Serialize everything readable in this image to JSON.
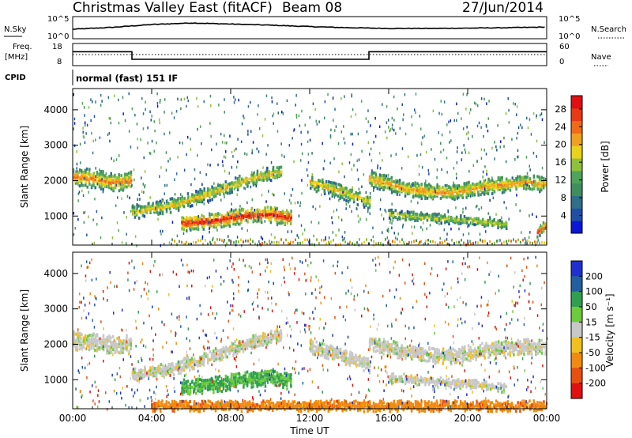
{
  "header": {
    "title": "Christmas Valley East (fitACF)",
    "beam": "Beam 08",
    "date": "27/Jun/2014"
  },
  "noise_panel": {
    "label": "N.Sky",
    "right_label": "N.Search",
    "tick_top": "10^5",
    "tick_bottom": "10^0"
  },
  "freq_panel": {
    "label_line1": "Freq.",
    "label_line2": "[MHz]",
    "ticks_left": [
      "18",
      "8"
    ],
    "ticks_right": [
      "60",
      "0"
    ],
    "right_label": "Nave"
  },
  "cpid": {
    "label": "CPID",
    "value": "normal (fast) 151 IF"
  },
  "power_panel": {
    "ylabel": "Slant Range [km]",
    "yticks": [
      "1000",
      "2000",
      "3000",
      "4000"
    ],
    "colorbar_label": "Power [dB]",
    "colorbar_ticks": [
      "4",
      "8",
      "12",
      "16",
      "20",
      "24",
      "28"
    ]
  },
  "velocity_panel": {
    "ylabel": "Slant Range [km]",
    "yticks": [
      "1000",
      "2000",
      "3000",
      "4000"
    ],
    "colorbar_label": "Velocity [m s⁻¹]",
    "colorbar_ticks": [
      "200",
      "100",
      "50",
      "15",
      "-15",
      "-50",
      "-100",
      "-200"
    ]
  },
  "x_axis": {
    "label": "Time UT",
    "ticks": [
      "00:00",
      "04:00",
      "08:00",
      "12:00",
      "16:00",
      "20:00",
      "00:00"
    ]
  },
  "colors": {
    "power_scale": [
      "#0a16d8",
      "#1e4fa5",
      "#2f6f8a",
      "#3f8f5d",
      "#4fa35a",
      "#8fc03a",
      "#e8d21c",
      "#f0a020",
      "#f06a18",
      "#e83a14",
      "#e01010"
    ],
    "velocity_scale": [
      "#2030d0",
      "#2060a0",
      "#30a050",
      "#6ccc3c",
      "#c8c8c8",
      "#f0c020",
      "#f08a10",
      "#e85010",
      "#e01010"
    ]
  },
  "chart_data": [
    {
      "type": "line",
      "title": "N.Sky / N.Search",
      "x": [
        0,
        2,
        4,
        6,
        8,
        10,
        12,
        14,
        16,
        18,
        20,
        22,
        24
      ],
      "series": [
        {
          "name": "N.Sky",
          "values": [
            150,
            500,
            3000,
            8000,
            4000,
            2000,
            800,
            400,
            250,
            250,
            300,
            400,
            600
          ]
        }
      ],
      "ylim": [
        1,
        100000
      ]
    },
    {
      "type": "line",
      "title": "Freq. [MHz]",
      "x": [
        0,
        3,
        3,
        15,
        15,
        24
      ],
      "series": [
        {
          "name": "Freq.",
          "values": [
            14.5,
            14.5,
            10.5,
            10.5,
            14.5,
            14.5
          ]
        }
      ],
      "ylim": [
        8,
        18
      ]
    },
    {
      "type": "heatmap",
      "title": "Power [dB]",
      "xlabel": "Time UT",
      "ylabel": "Slant Range [km]",
      "xlim": [
        0,
        24
      ],
      "ylim": [
        180,
        4600
      ],
      "zlim": [
        0,
        31
      ],
      "x_ticks": [
        0,
        4,
        8,
        12,
        16,
        20,
        24
      ],
      "y_ticks": [
        1000,
        2000,
        3000,
        4000
      ],
      "bands": [
        {
          "t": [
            0.0,
            1.0,
            2.0,
            3.0
          ],
          "range": [
            2150,
            2100,
            2000,
            2050
          ],
          "width": 250,
          "peak_db": 24
        },
        {
          "t": [
            3.0,
            5.0,
            7.0,
            9.0,
            10.5
          ],
          "range": [
            1150,
            1350,
            1700,
            2100,
            2300
          ],
          "width": 180,
          "peak_db": 20
        },
        {
          "t": [
            5.5,
            7.0,
            8.5,
            10.0,
            11.0
          ],
          "range": [
            850,
            900,
            1050,
            1100,
            1000
          ],
          "width": 220,
          "peak_db": 29
        },
        {
          "t": [
            12.0,
            13.5,
            15.0
          ],
          "range": [
            2000,
            1750,
            1450
          ],
          "width": 200,
          "peak_db": 20
        },
        {
          "t": [
            15.0,
            17.0,
            19.0,
            21.0,
            23.0,
            24.0
          ],
          "range": [
            2100,
            1800,
            1700,
            1900,
            2000,
            1950
          ],
          "width": 220,
          "peak_db": 22
        },
        {
          "t": [
            16.0,
            18.0,
            20.5,
            22.0
          ],
          "range": [
            1100,
            1000,
            900,
            800
          ],
          "width": 120,
          "peak_db": 18
        },
        {
          "t": [
            23.5,
            24.0
          ],
          "range": [
            600,
            800
          ],
          "width": 150,
          "peak_db": 27
        }
      ]
    },
    {
      "type": "heatmap",
      "title": "Velocity [m s-1]",
      "xlabel": "Time UT",
      "ylabel": "Slant Range [km]",
      "xlim": [
        0,
        24
      ],
      "ylim": [
        180,
        4600
      ],
      "zlim": [
        -200,
        200
      ],
      "x_ticks": [
        0,
        4,
        8,
        12,
        16,
        20,
        24
      ],
      "y_ticks": [
        1000,
        2000,
        3000,
        4000
      ],
      "bands": [
        {
          "t": [
            0.0,
            1.0,
            2.0,
            3.0
          ],
          "range": [
            2150,
            2100,
            2000,
            2050
          ],
          "width": 250,
          "velocity": 0
        },
        {
          "t": [
            3.0,
            5.0,
            7.0,
            9.0,
            10.5
          ],
          "range": [
            1150,
            1350,
            1700,
            2100,
            2300
          ],
          "width": 180,
          "velocity": 0
        },
        {
          "t": [
            5.5,
            7.0,
            8.5,
            10.0,
            11.0
          ],
          "range": [
            850,
            900,
            1050,
            1100,
            1000
          ],
          "width": 220,
          "velocity": 35
        },
        {
          "t": [
            12.0,
            13.5,
            15.0
          ],
          "range": [
            2000,
            1750,
            1450
          ],
          "width": 200,
          "velocity": 0
        },
        {
          "t": [
            15.0,
            17.0,
            19.0,
            21.0,
            23.0,
            24.0
          ],
          "range": [
            2100,
            1800,
            1700,
            1900,
            2000,
            1950
          ],
          "width": 220,
          "velocity": 0
        },
        {
          "t": [
            16.0,
            18.0,
            20.5,
            22.0
          ],
          "range": [
            1100,
            1000,
            900,
            800
          ],
          "width": 120,
          "velocity": 0
        },
        {
          "t": [
            4.0,
            7.0,
            12.0,
            18.0,
            24.0
          ],
          "range": [
            300,
            300,
            300,
            300,
            300
          ],
          "width": 140,
          "velocity": -60
        }
      ]
    }
  ]
}
